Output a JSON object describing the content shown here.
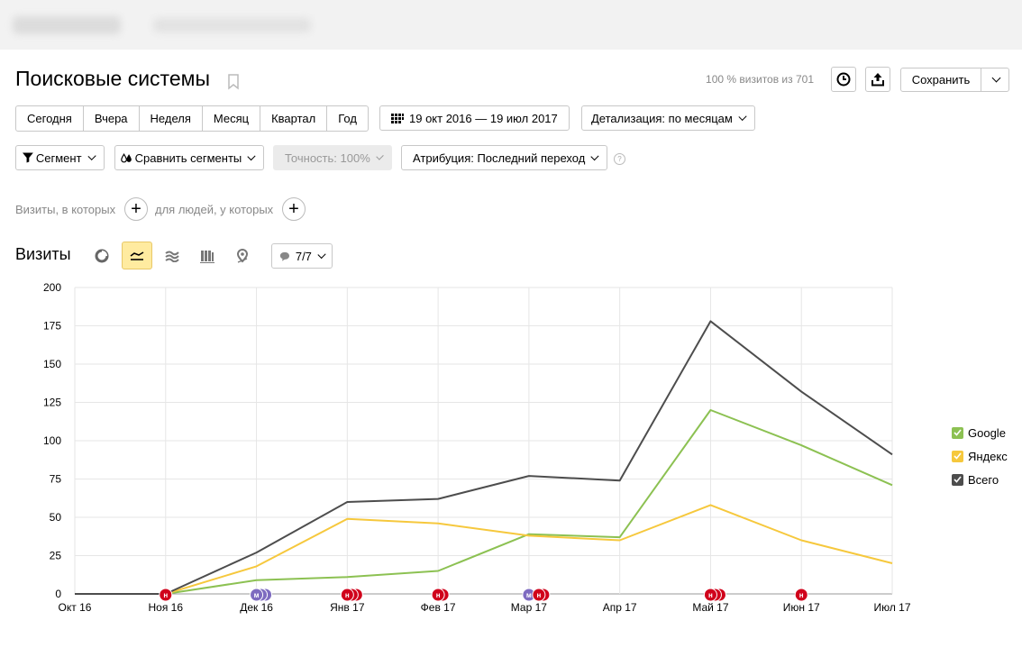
{
  "header": {
    "title": "Поисковые системы",
    "visits_share": "100 % визитов из 701",
    "save_label": "Сохранить"
  },
  "periods": [
    "Сегодня",
    "Вчера",
    "Неделя",
    "Месяц",
    "Квартал",
    "Год"
  ],
  "date_range": "19 окт 2016 — 19 июл 2017",
  "detail": "Детализация: по месяцам",
  "segment": "Сегмент",
  "compare": "Сравнить сегменты",
  "accuracy": "Точность: 100%",
  "attribution": "Атрибуция: Последний переход",
  "filters": {
    "visits_label": "Визиты, в которых",
    "people_label": "для людей, у которых"
  },
  "chart_section": {
    "title": "Визиты",
    "notes_count": "7/7"
  },
  "colors": {
    "google": "#8cc152",
    "yandex": "#f6c83d",
    "total": "#4d4d4d",
    "note_red": "#d0021b",
    "note_purple": "#7e6bc0"
  },
  "chart_data": {
    "type": "line",
    "categories": [
      "Окт 16",
      "Ноя 16",
      "Дек 16",
      "Янв 17",
      "Фев 17",
      "Мар 17",
      "Апр 17",
      "Май 17",
      "Июн 17",
      "Июл 17"
    ],
    "ylim": [
      0,
      200
    ],
    "yticks": [
      0,
      25,
      50,
      75,
      100,
      125,
      150,
      175,
      200
    ],
    "grid": true,
    "legend_position": "right",
    "series": [
      {
        "name": "Google",
        "color": "#8cc152",
        "values": [
          0,
          0,
          9,
          11,
          15,
          39,
          37,
          120,
          97,
          71
        ]
      },
      {
        "name": "Яндекс",
        "color": "#f6c83d",
        "values": [
          0,
          0,
          18,
          49,
          46,
          38,
          35,
          58,
          35,
          20
        ]
      },
      {
        "name": "Всего",
        "color": "#4d4d4d",
        "values": [
          0,
          0,
          27,
          60,
          62,
          77,
          74,
          178,
          132,
          91
        ]
      }
    ],
    "annotations": [
      {
        "category": "Ноя 16",
        "type": "н",
        "count": 1
      },
      {
        "category": "Дек 16",
        "type": "м",
        "count": 3
      },
      {
        "category": "Янв 17",
        "type": "н",
        "count": 3
      },
      {
        "category": "Фев 17",
        "type": "н",
        "count": 2
      },
      {
        "category": "Мар 17",
        "type": "м",
        "count": 1
      },
      {
        "category": "Мар 17",
        "type": "н",
        "count": 2
      },
      {
        "category": "Май 17",
        "type": "н",
        "count": 3
      },
      {
        "category": "Июн 17",
        "type": "н",
        "count": 1
      }
    ]
  }
}
